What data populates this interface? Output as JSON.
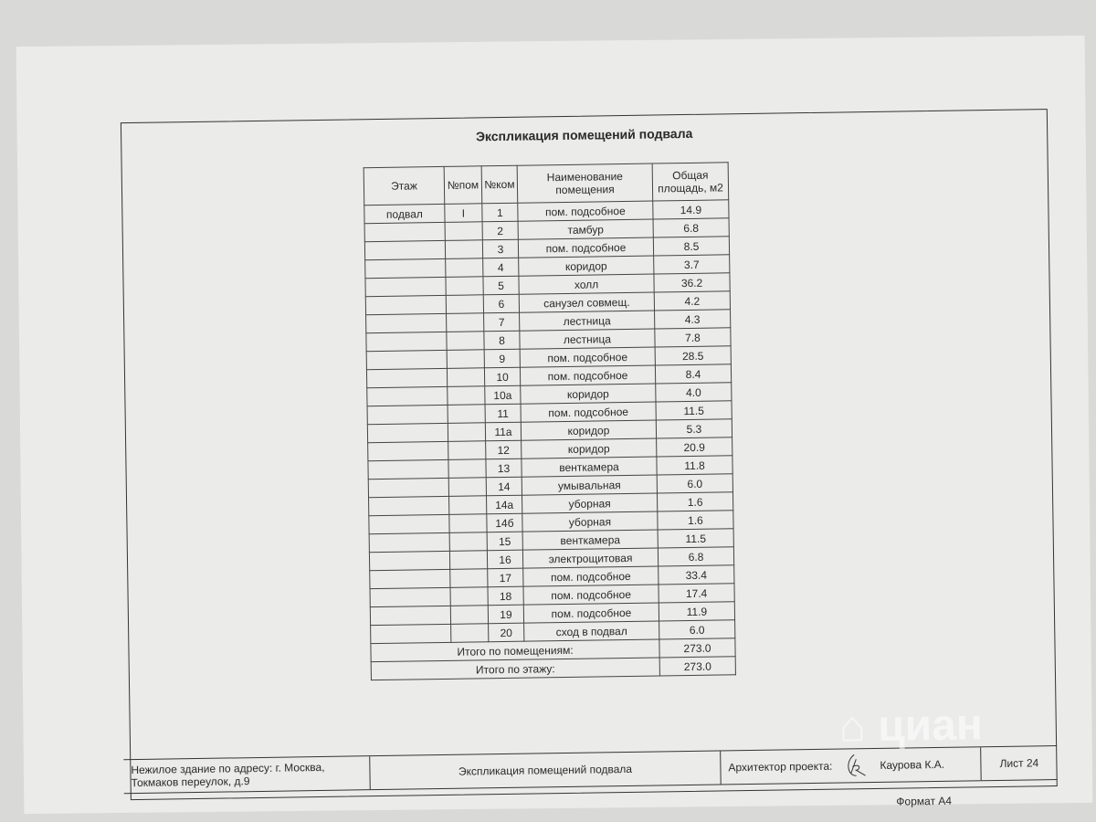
{
  "title": "Экспликация помещений подвала",
  "table": {
    "headers": [
      "Этаж",
      "№пом",
      "№ком",
      "Наименование помещения",
      "Общая площадь, м2"
    ],
    "rows": [
      [
        "подвал",
        "I",
        "1",
        "пом. подсобное",
        "14.9"
      ],
      [
        "",
        "",
        "2",
        "тамбур",
        "6.8"
      ],
      [
        "",
        "",
        "3",
        "пом. подсобное",
        "8.5"
      ],
      [
        "",
        "",
        "4",
        "коридор",
        "3.7"
      ],
      [
        "",
        "",
        "5",
        "холл",
        "36.2"
      ],
      [
        "",
        "",
        "6",
        "санузел совмещ.",
        "4.2"
      ],
      [
        "",
        "",
        "7",
        "лестница",
        "4.3"
      ],
      [
        "",
        "",
        "8",
        "лестница",
        "7.8"
      ],
      [
        "",
        "",
        "9",
        "пом. подсобное",
        "28.5"
      ],
      [
        "",
        "",
        "10",
        "пом. подсобное",
        "8.4"
      ],
      [
        "",
        "",
        "10а",
        "коридор",
        "4.0"
      ],
      [
        "",
        "",
        "11",
        "пом. подсобное",
        "11.5"
      ],
      [
        "",
        "",
        "11а",
        "коридор",
        "5.3"
      ],
      [
        "",
        "",
        "12",
        "коридор",
        "20.9"
      ],
      [
        "",
        "",
        "13",
        "венткамера",
        "11.8"
      ],
      [
        "",
        "",
        "14",
        "умывальная",
        "6.0"
      ],
      [
        "",
        "",
        "14а",
        "уборная",
        "1.6"
      ],
      [
        "",
        "",
        "14б",
        "уборная",
        "1.6"
      ],
      [
        "",
        "",
        "15",
        "венткамера",
        "11.5"
      ],
      [
        "",
        "",
        "16",
        "электрощитовая",
        "6.8"
      ],
      [
        "",
        "",
        "17",
        "пом. подсобное",
        "33.4"
      ],
      [
        "",
        "",
        "18",
        "пом. подсобное",
        "17.4"
      ],
      [
        "",
        "",
        "19",
        "пом. подсобное",
        "11.9"
      ],
      [
        "",
        "",
        "20",
        "сход в подвал",
        "6.0"
      ]
    ],
    "totals": [
      {
        "label": "Итого по помещениям:",
        "value": "273.0"
      },
      {
        "label": "Итого по этажу:",
        "value": "273.0"
      }
    ]
  },
  "stamp": {
    "address_line1": "Нежилое здание по адресу: г. Москва,",
    "address_line2": "Токмаков переулок, д.9",
    "sheet_title": "Экспликация помещений подвала",
    "architect_label": "Архитектор проекта:",
    "architect_name": "Каурова К.А.",
    "sheet": "Лист 24",
    "format": "Формат А4"
  },
  "watermark": "циан"
}
